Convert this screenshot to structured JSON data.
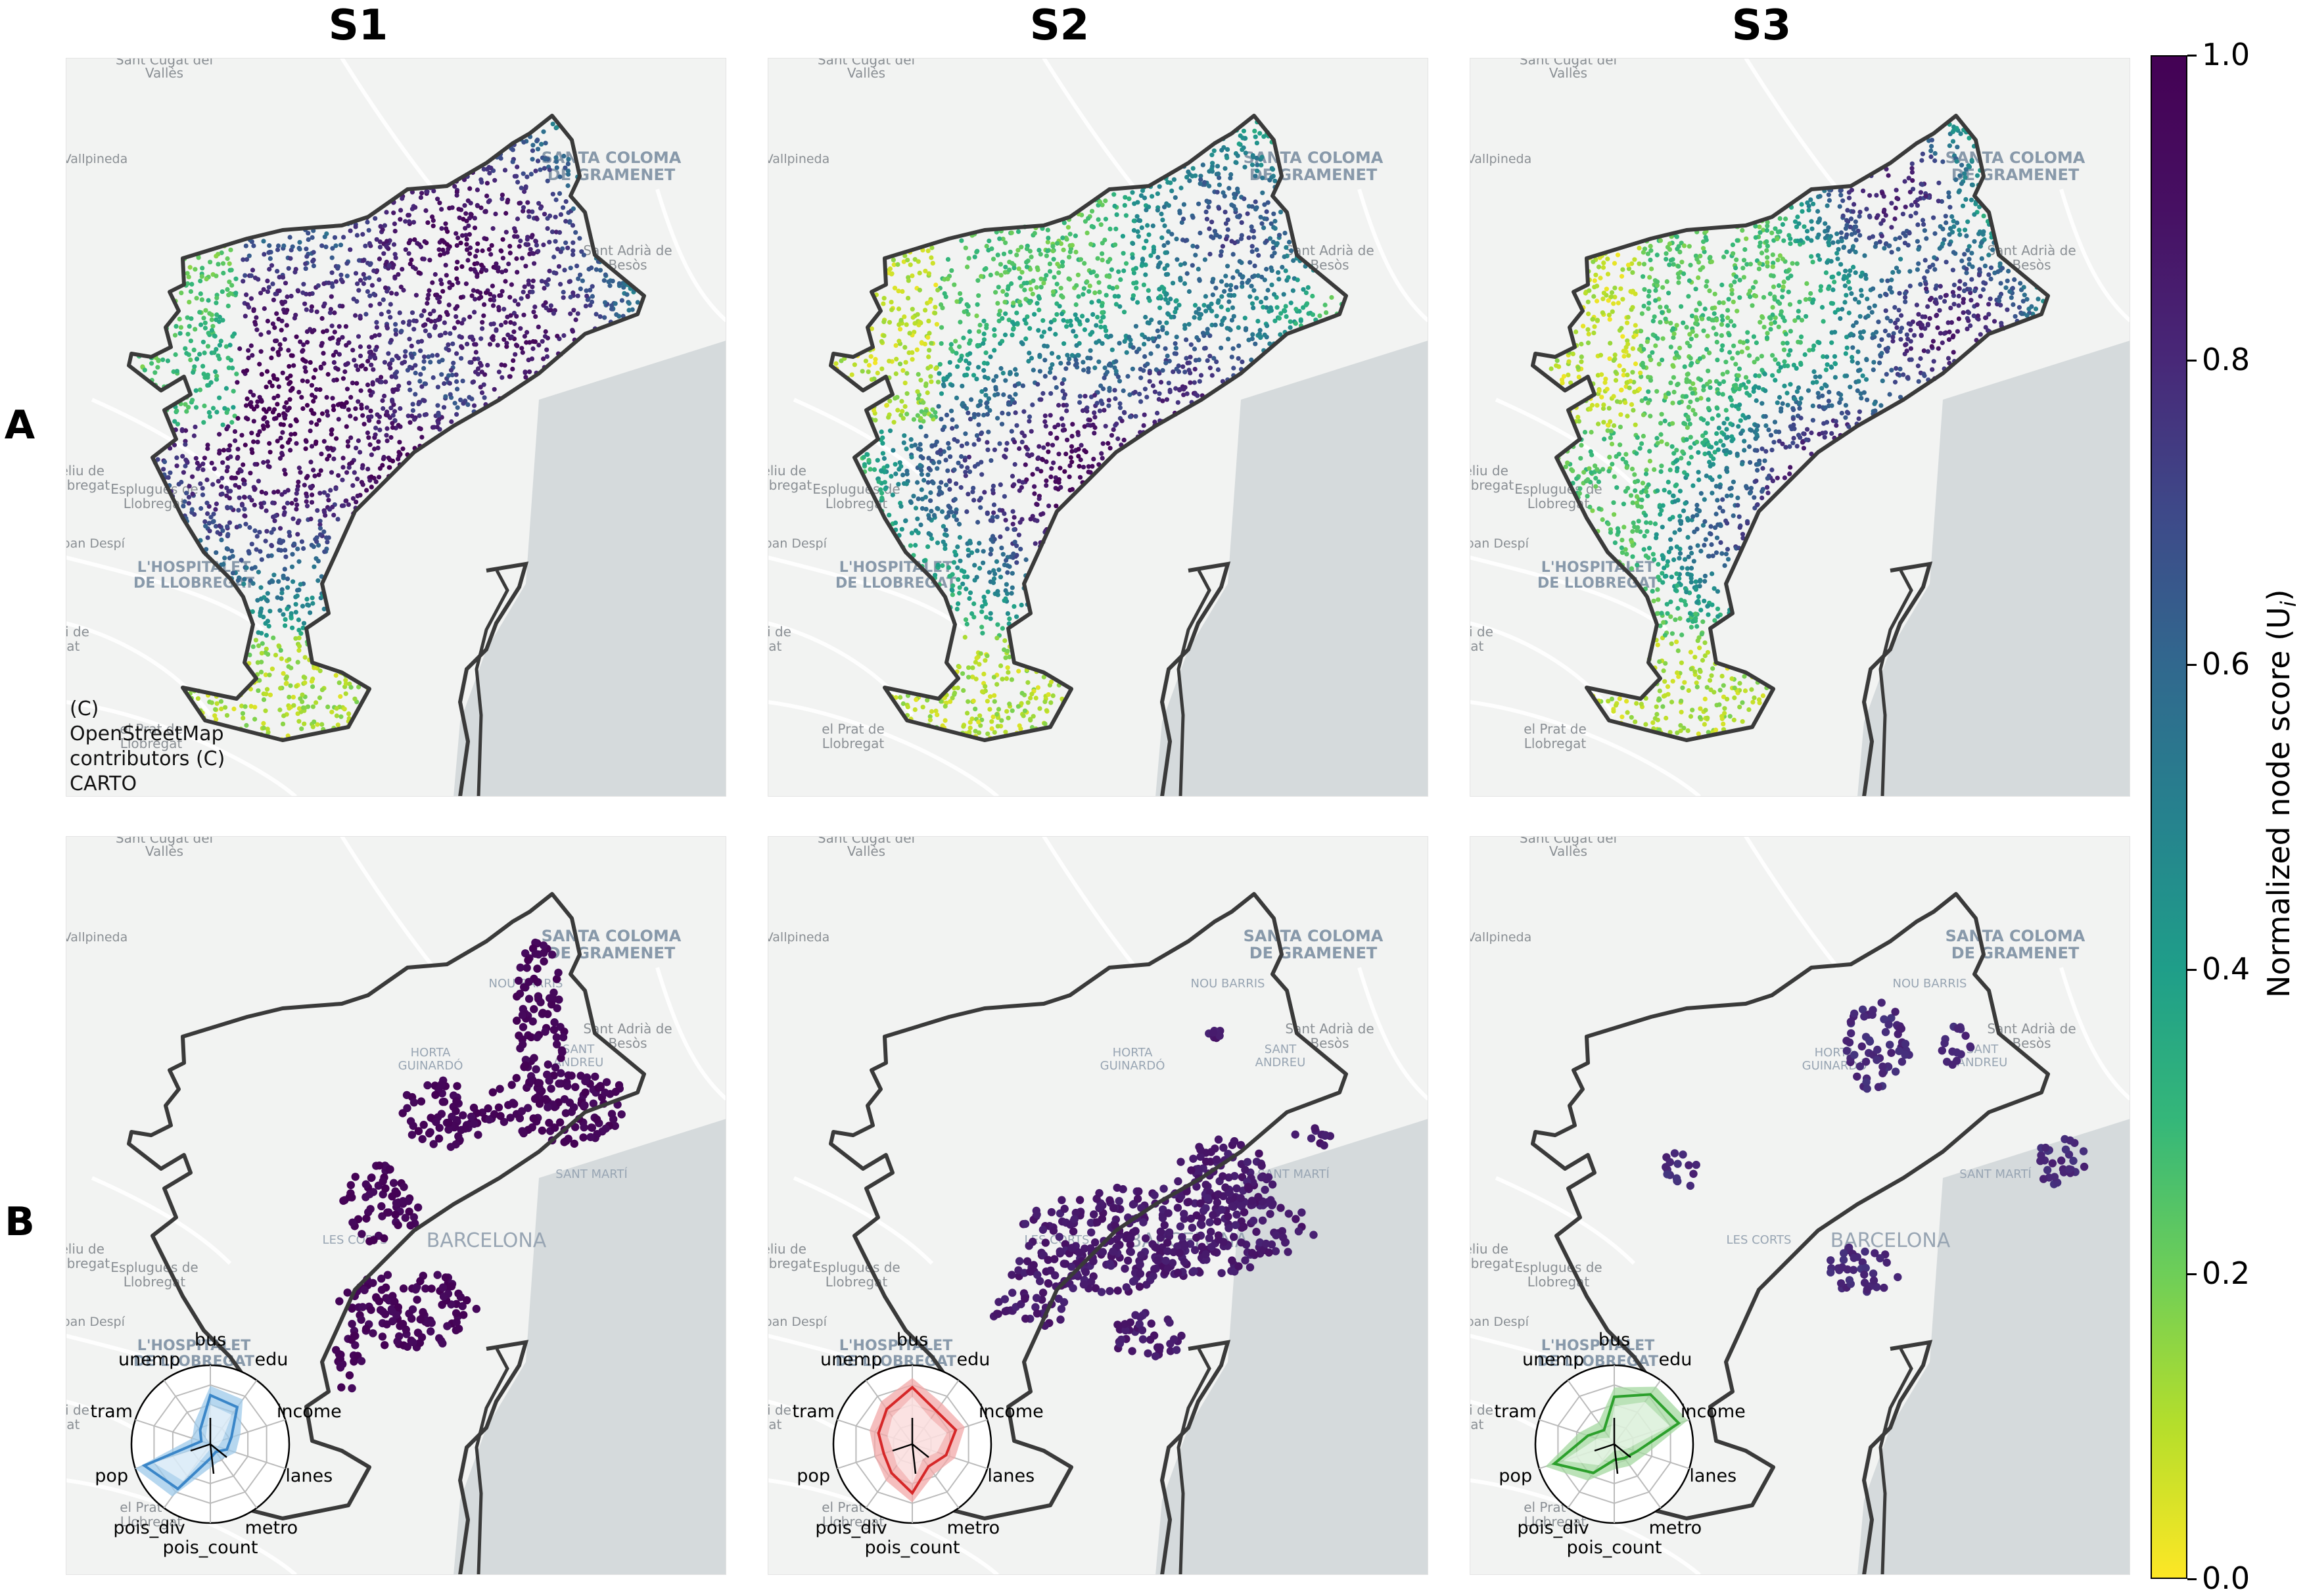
{
  "columns": [
    "S1",
    "S2",
    "S3"
  ],
  "rows": [
    "A",
    "B"
  ],
  "attribution": [
    "(C)",
    "OpenStreetMap",
    "contributors (C)",
    "CARTO"
  ],
  "basemap_labels": {
    "sant_cugat": [
      "Sant Cugat del",
      "Vallès"
    ],
    "vallpineda": "Vallpineda",
    "santa_coloma": [
      "SANTA COLOMA",
      "DE GRAMENET"
    ],
    "sant_adria": [
      "Sant Adrià de",
      "Besòs"
    ],
    "feliu": [
      "Feliu de",
      "Llobregat"
    ],
    "esplugues": [
      "Esplugues de",
      "Llobregat"
    ],
    "sant_joan": "Sant Joan Despí",
    "hospitalet": [
      "L'HOSPITALET",
      "DE LLOBREGAT"
    ],
    "boi": [
      "boi de",
      "gat"
    ],
    "el_prat": [
      "el Prat de",
      "Llobregat"
    ],
    "nou_barris": "NOU BARRIS",
    "horta": [
      "HORTA",
      "GUINARDÓ"
    ],
    "sant_andreu": [
      "SANT",
      "ANDREU"
    ],
    "sant_marti": "SANT MARTÍ",
    "les_corts": "LES CORTS",
    "barcelona": "BARCELONA"
  },
  "radar": {
    "axes": [
      "bus",
      "edu",
      "income",
      "lanes",
      "metro",
      "pois_count",
      "pois_div",
      "pop",
      "tram",
      "unemp"
    ],
    "s1": {
      "color": "#3a86c8",
      "fill": "#9ec9ea",
      "values": [
        0.62,
        0.58,
        0.28,
        0.22,
        0.12,
        0.18,
        0.7,
        0.88,
        0.12,
        0.22
      ]
    },
    "s2": {
      "color": "#d62728",
      "fill": "#f2a8a8",
      "values": [
        0.72,
        0.52,
        0.58,
        0.45,
        0.35,
        0.62,
        0.45,
        0.38,
        0.45,
        0.55
      ]
    },
    "s3": {
      "color": "#2ca02c",
      "fill": "#a4d8a0",
      "values": [
        0.6,
        0.78,
        0.86,
        0.3,
        0.22,
        0.2,
        0.45,
        0.8,
        0.35,
        0.22
      ]
    }
  },
  "colorbar": {
    "label": "Normalized node score (U",
    "label_sub": "i",
    "label_end": ")",
    "ticks": [
      "0.0",
      "0.2",
      "0.4",
      "0.6",
      "0.8",
      "1.0"
    ],
    "range": [
      0.0,
      1.0
    ],
    "colormap": "viridis"
  },
  "colors": {
    "background": "#f2f3f2",
    "water": "#d5dadc",
    "boundary": "#3a3a3a"
  }
}
